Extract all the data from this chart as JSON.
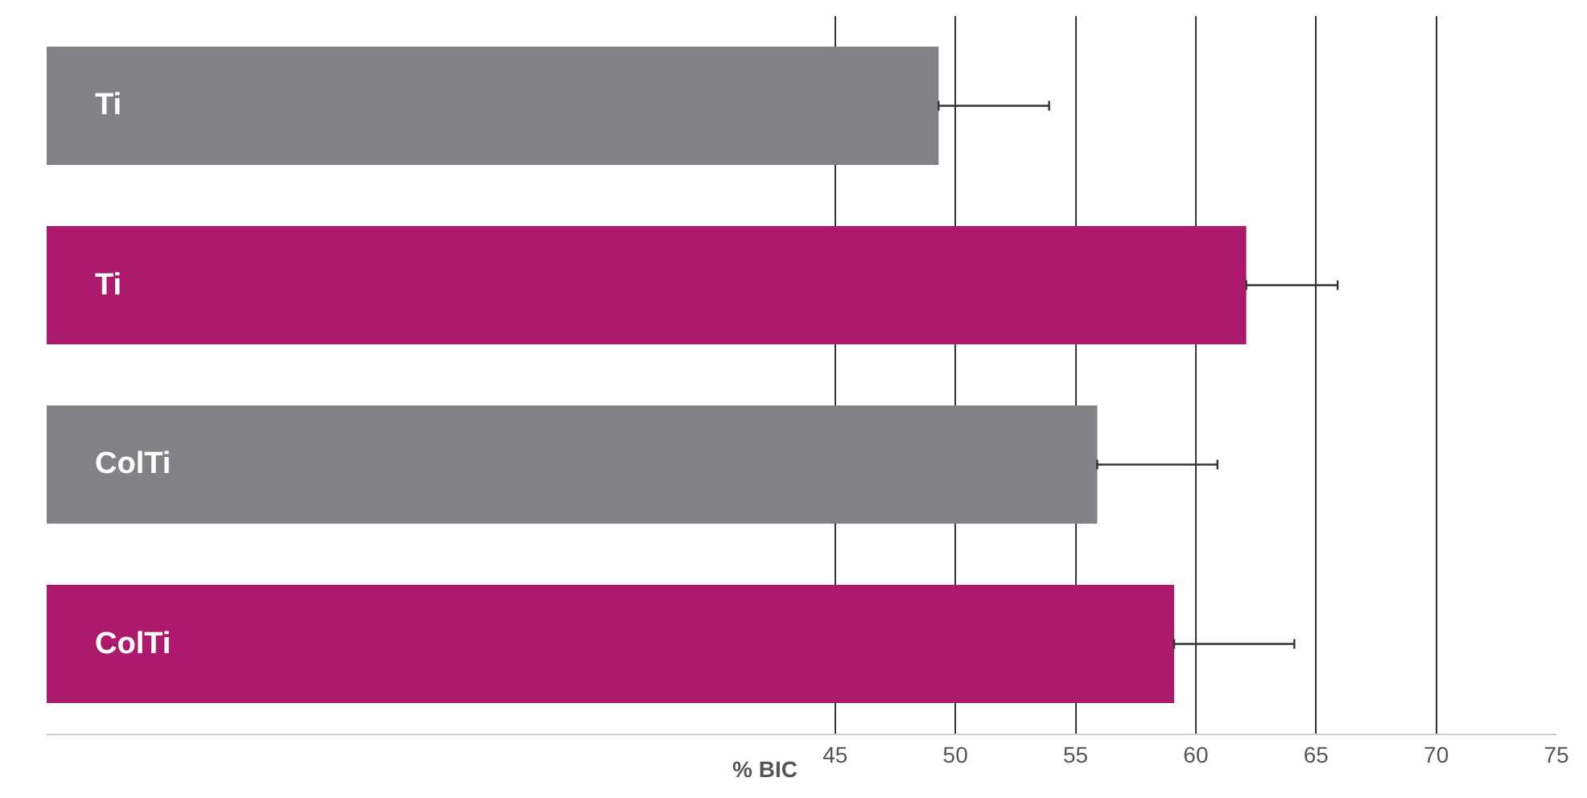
{
  "chart_data": {
    "type": "bar",
    "orientation": "horizontal",
    "xlabel": "% BIC",
    "categories": [
      "Ti",
      "Ti",
      "ColTi",
      "ColTi"
    ],
    "values": [
      49.3,
      62.1,
      55.9,
      59.1
    ],
    "colors": [
      "#808285",
      "#ab1a6d",
      "#808285",
      "#ab1a6d"
    ],
    "errors": [
      [
        49.3,
        53.9
      ],
      [
        62.1,
        65.9
      ],
      [
        55.9,
        60.9
      ],
      [
        59.1,
        64.1
      ]
    ],
    "xlim": [
      12.2,
      75
    ],
    "xticks": [
      45,
      50,
      55,
      60,
      65,
      70,
      75
    ],
    "grid": "x"
  }
}
